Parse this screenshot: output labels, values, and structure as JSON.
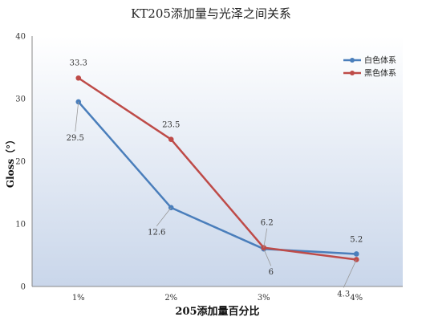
{
  "chart_data": {
    "type": "line",
    "title": "KT205添加量与光泽之间关系",
    "xlabel": "205添加量百分比",
    "ylabel": "Gloss（°）",
    "categories": [
      "1%",
      "2%",
      "3%",
      "4%"
    ],
    "ylim": [
      0,
      40
    ],
    "yticks": [
      "0",
      "10",
      "20",
      "30",
      "40"
    ],
    "grid": false,
    "legend_position": "top-right",
    "series": [
      {
        "name": "白色体系",
        "color": "#4A7EBB",
        "values": [
          29.5,
          12.6,
          6,
          5.2
        ],
        "labels": [
          "29.5",
          "12.6",
          "6",
          "5.2"
        ]
      },
      {
        "name": "黑色体系",
        "color": "#BE4B48",
        "values": [
          33.3,
          23.5,
          6.2,
          4.3
        ],
        "labels": [
          "33.3",
          "23.5",
          "6.2",
          "4.3"
        ]
      }
    ]
  }
}
